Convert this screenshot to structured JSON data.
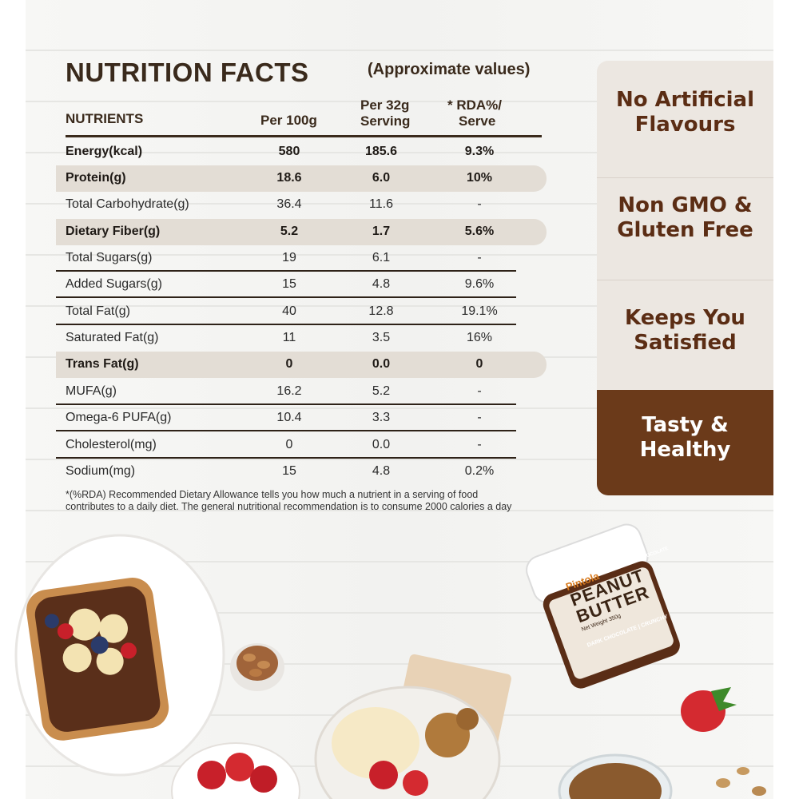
{
  "title": "NUTRITION FACTS",
  "subtitle": "(Approximate values)",
  "headers": {
    "nutrient": "NUTRIENTS",
    "per100": "Per 100g",
    "serving_line1": "Per 32g",
    "serving_line2": "Serving",
    "rda_line1": "* RDA%/",
    "rda_line2": "Serve"
  },
  "rows": [
    {
      "name": "Energy(kcal)",
      "per100": "580",
      "serving": "185.6",
      "rda": "9.3%"
    },
    {
      "name": "Protein(g)",
      "per100": "18.6",
      "serving": "6.0",
      "rda": "10%"
    },
    {
      "name": "Total Carbohydrate(g)",
      "per100": "36.4",
      "serving": "11.6",
      "rda": "-"
    },
    {
      "name": "Dietary Fiber(g)",
      "per100": "5.2",
      "serving": "1.7",
      "rda": "5.6%"
    },
    {
      "name": "Total Sugars(g)",
      "per100": "19",
      "serving": "6.1",
      "rda": "-"
    },
    {
      "name": "Added Sugars(g)",
      "per100": "15",
      "serving": "4.8",
      "rda": "9.6%"
    },
    {
      "name": "Total Fat(g)",
      "per100": "40",
      "serving": "12.8",
      "rda": "19.1%"
    },
    {
      "name": "Saturated Fat(g)",
      "per100": "11",
      "serving": "3.5",
      "rda": "16%"
    },
    {
      "name": "Trans Fat(g)",
      "per100": "0",
      "serving": "0.0",
      "rda": "0"
    },
    {
      "name": "MUFA(g)",
      "per100": "16.2",
      "serving": "5.2",
      "rda": "-"
    },
    {
      "name": "Omega-6 PUFA(g)",
      "per100": "10.4",
      "serving": "3.3",
      "rda": "-"
    },
    {
      "name": "Cholesterol(mg)",
      "per100": "0",
      "serving": "0.0",
      "rda": "-"
    },
    {
      "name": "Sodium(mg)",
      "per100": "15",
      "serving": "4.8",
      "rda": "0.2%"
    }
  ],
  "footnote_line1": "*(%RDA) Recommended Dietary Allowance tells you how much a nutrient in a serving of food",
  "footnote_line2": "contributes to a daily diet. The general nutritional recommendation is to consume 2000 calories a day",
  "features": [
    {
      "line1": "No Artificial",
      "line2": "Flavours"
    },
    {
      "line1": "Non GMO &",
      "line2": "Gluten Free"
    },
    {
      "line1": "Keeps You",
      "line2": "Satisfied"
    },
    {
      "line1": "Tasty &",
      "line2": "Healthy"
    }
  ],
  "jar": {
    "brand": "Pintola",
    "product_line1": "PEANUT",
    "product_line2": "BUTTER",
    "flavour_tag": "CHOCOLATE",
    "net_weight": "Net Weight 350g",
    "variant": "DARK CHOCOLATE | CRUNCHY"
  },
  "colors": {
    "brown_dark": "#6b3a1a",
    "brown_text": "#5b2d14",
    "panel_beige": "#ece7e1",
    "row_highlight": "#e3ddd5"
  }
}
